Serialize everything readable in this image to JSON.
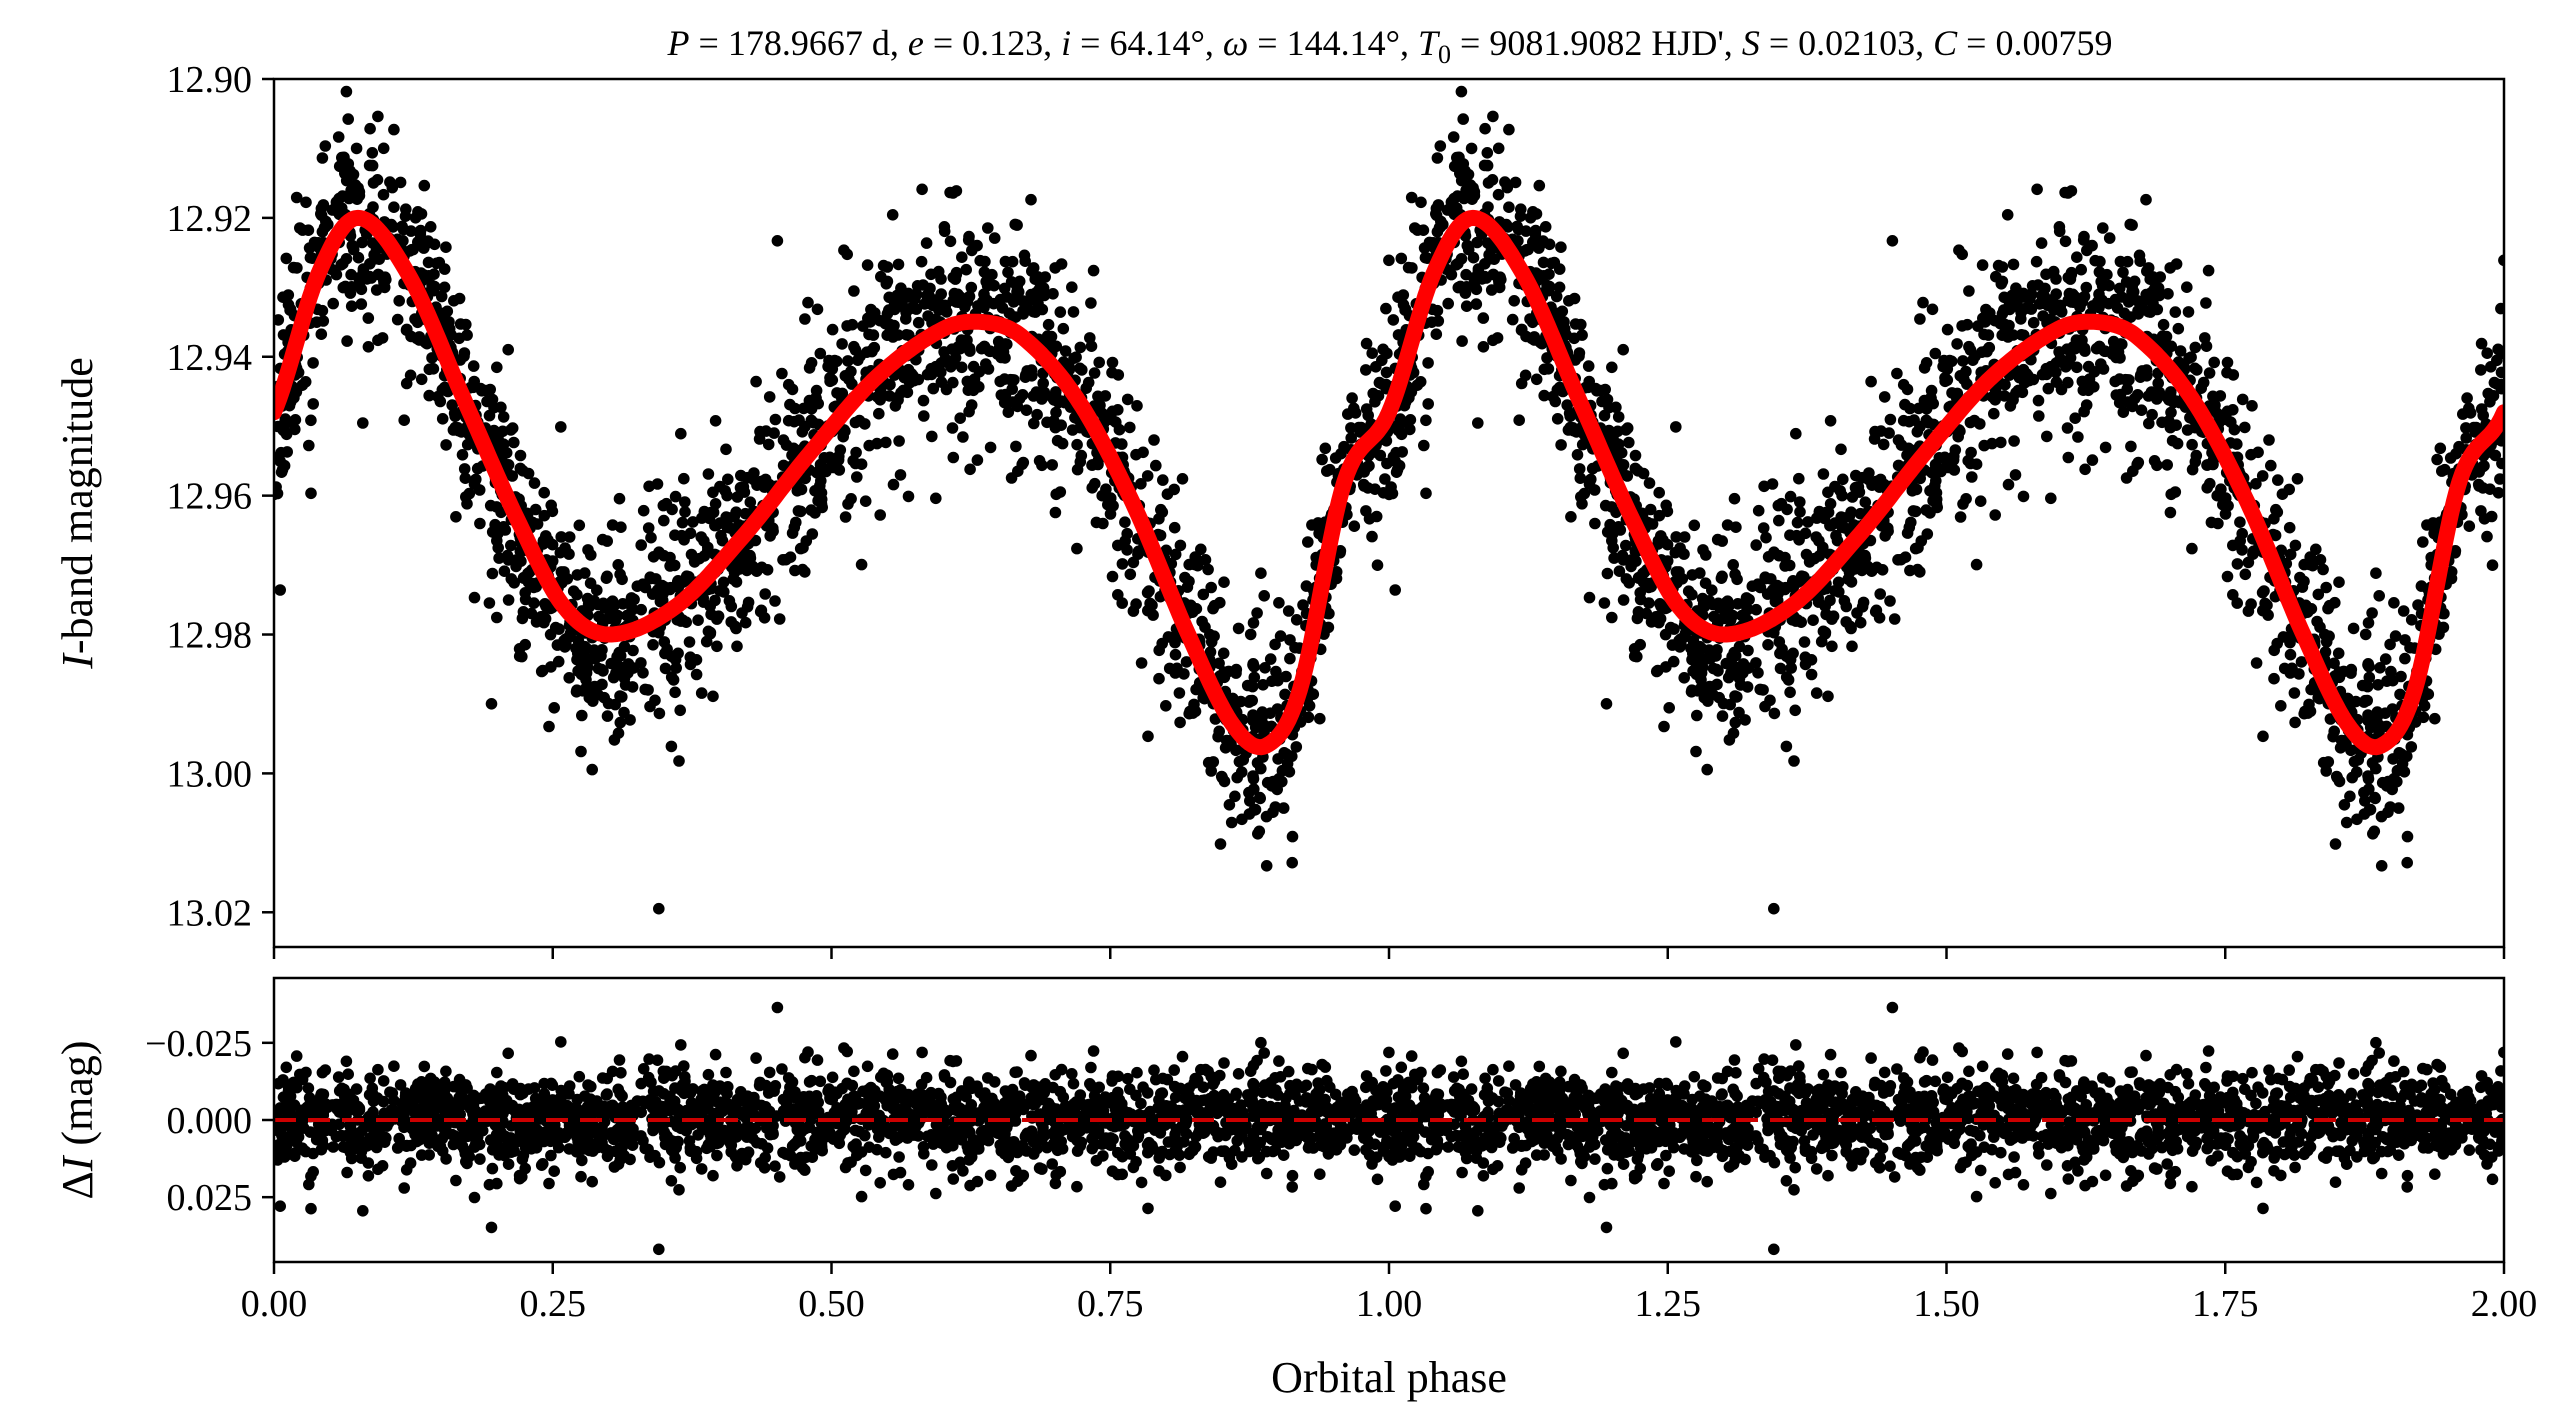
{
  "title_parts": {
    "p_sym": "P",
    "p_val": " = 178.9667 d, ",
    "e_sym": "e",
    "e_val": " = 0.123, ",
    "i_sym": "i",
    "i_val": " = 64.14°, ",
    "w_sym": "ω",
    "w_val": " = 144.14°, ",
    "t_sym": "T",
    "t_sub": "0",
    "t_val": " = 9081.9082 HJD', ",
    "s_sym": "S",
    "s_val": " = 0.02103, ",
    "c_sym": "C",
    "c_val": " = 0.00759"
  },
  "top_ylabel": {
    "italic": "I",
    "rest": "-band magnitude"
  },
  "bottom_ylabel": {
    "delta": "Δ",
    "italic": "I",
    "rest": " (mag)"
  },
  "chart_data": [
    {
      "type": "scatter",
      "panel": "light-curve",
      "xlim": [
        0.0,
        2.0
      ],
      "ylim": [
        13.025,
        12.9
      ],
      "y_inverted": true,
      "xlabel": "",
      "ylabel": "I-band magnitude",
      "yticks": [
        "12.90",
        "12.92",
        "12.94",
        "12.96",
        "12.98",
        "13.00",
        "13.02"
      ],
      "ytick_values": [
        12.9,
        12.92,
        12.94,
        12.96,
        12.98,
        13.0,
        13.02
      ],
      "xticks_values": [
        0.0,
        0.25,
        0.5,
        0.75,
        1.0,
        1.25,
        1.5,
        1.75,
        2.0
      ],
      "model_curve": {
        "color": "#ff0000",
        "phase": [
          0.0,
          0.04,
          0.075,
          0.12,
          0.17,
          0.22,
          0.26,
          0.3,
          0.36,
          0.42,
          0.48,
          0.54,
          0.6,
          0.635,
          0.67,
          0.72,
          0.77,
          0.82,
          0.86,
          0.89,
          0.92,
          0.96,
          1.0
        ],
        "magnitude": [
          12.948,
          12.928,
          12.92,
          12.928,
          12.946,
          12.964,
          12.976,
          12.98,
          12.976,
          12.966,
          12.954,
          12.943,
          12.936,
          12.935,
          12.937,
          12.946,
          12.961,
          12.98,
          12.993,
          12.996,
          12.988,
          12.958,
          12.948
        ]
      },
      "observations": {
        "color": "#000000",
        "scatter_sigma_mag": 0.0075,
        "points_per_cycle": 2100
      }
    },
    {
      "type": "scatter",
      "panel": "residuals",
      "xlim": [
        0.0,
        2.0
      ],
      "ylim": [
        0.046,
        -0.046
      ],
      "y_inverted": true,
      "xlabel": "Orbital phase",
      "ylabel": "ΔI (mag)",
      "yticks": [
        "−0.025",
        "0.000",
        "0.025"
      ],
      "ytick_values": [
        -0.025,
        0.0,
        0.025
      ],
      "xticks": [
        "0.00",
        "0.25",
        "0.50",
        "0.75",
        "1.00",
        "1.25",
        "1.50",
        "1.75",
        "2.00"
      ],
      "xticks_values": [
        0.0,
        0.25,
        0.5,
        0.75,
        1.0,
        1.25,
        1.5,
        1.75,
        2.0
      ],
      "zero_line": {
        "value": 0.0,
        "color": "#cc0000",
        "style": "dashed"
      },
      "residuals": {
        "color": "#000000",
        "scatter_sigma_mag": 0.0075
      }
    }
  ]
}
